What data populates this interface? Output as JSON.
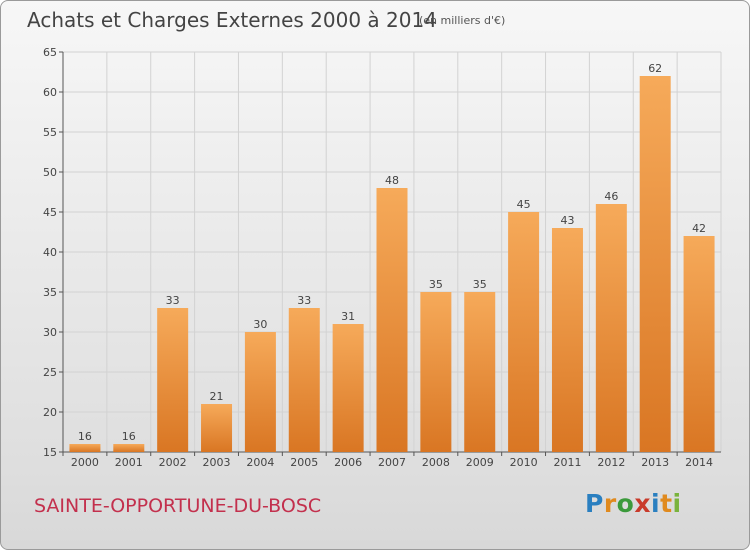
{
  "title": "Achats et Charges Externes 2000 à 2014",
  "subtitle": "(en milliers d'€)",
  "commune": "SAINTE-OPPORTUNE-DU-BOSC",
  "logo": {
    "text": "Proxiti",
    "letters": [
      "P",
      "r",
      "o",
      "x",
      "i",
      "t",
      "i"
    ],
    "colors": [
      "#2a7fc0",
      "#e08a1e",
      "#3b9a3b",
      "#c93a2a",
      "#2a7fc0",
      "#e08a1e",
      "#7ab33c"
    ]
  },
  "colors": {
    "bar_light": "#f6aa5a",
    "bar_dark": "#d97623",
    "text": "#444444",
    "title_commune": "#c3304d"
  },
  "chart_data": {
    "type": "bar",
    "categories": [
      "2000",
      "2001",
      "2002",
      "2003",
      "2004",
      "2005",
      "2006",
      "2007",
      "2008",
      "2009",
      "2010",
      "2011",
      "2012",
      "2013",
      "2014"
    ],
    "values": [
      16,
      16,
      33,
      21,
      30,
      33,
      31,
      48,
      35,
      35,
      45,
      43,
      46,
      62,
      42
    ],
    "ylim": [
      15,
      65
    ],
    "yticks": [
      "15",
      "20",
      "25",
      "30",
      "35",
      "40",
      "45",
      "50",
      "55",
      "60",
      "65"
    ],
    "grid": true,
    "xlabel": "",
    "ylabel": ""
  }
}
